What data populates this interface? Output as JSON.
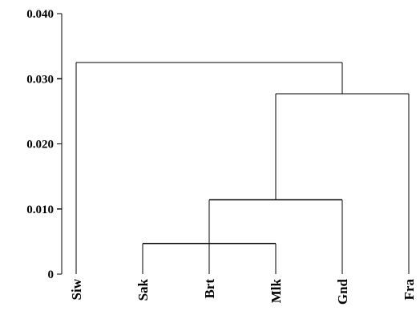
{
  "chart_data": {
    "type": "dendrogram",
    "title": "",
    "xlabel": "",
    "ylabel": "",
    "ylim": [
      0,
      0.04
    ],
    "y_ticks": [
      {
        "value": 0,
        "label": "0"
      },
      {
        "value": 0.01,
        "label": "0.010"
      },
      {
        "value": 0.02,
        "label": "0.020"
      },
      {
        "value": 0.03,
        "label": "0.030"
      },
      {
        "value": 0.04,
        "label": "0.040"
      }
    ],
    "leaves": [
      {
        "id": "siw",
        "label": "Siw"
      },
      {
        "id": "sak",
        "label": "Sak"
      },
      {
        "id": "brt",
        "label": "Brt"
      },
      {
        "id": "mlk",
        "label": "Mlk"
      },
      {
        "id": "gnd",
        "label": "Gnd"
      },
      {
        "id": "fra",
        "label": "Fra"
      }
    ],
    "merges": [
      {
        "id": "c1",
        "children": [
          "sak",
          "brt",
          "mlk"
        ],
        "height": 0.0047
      },
      {
        "id": "c2",
        "children": [
          "c1",
          "gnd"
        ],
        "height": 0.0114
      },
      {
        "id": "c3",
        "children": [
          "c2",
          "fra"
        ],
        "height": 0.0277
      },
      {
        "id": "c4",
        "children": [
          "siw",
          "c3"
        ],
        "height": 0.0325
      }
    ],
    "grid": false,
    "legend": "none"
  }
}
